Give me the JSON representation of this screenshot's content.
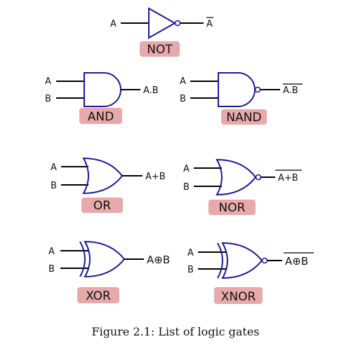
{
  "gates": {
    "not": {
      "name": "NOT",
      "input": "A",
      "output": "A"
    },
    "and": {
      "name": "AND",
      "inputs": [
        "A",
        "B"
      ],
      "output": "A.B"
    },
    "nand": {
      "name": "NAND",
      "inputs": [
        "A",
        "B"
      ],
      "output": "A.B"
    },
    "or": {
      "name": "OR",
      "inputs": [
        "A",
        "B"
      ],
      "output": "A+B"
    },
    "nor": {
      "name": "NOR",
      "inputs": [
        "A",
        "B"
      ],
      "output": "A+B"
    },
    "xor": {
      "name": "XOR",
      "inputs": [
        "A",
        "B"
      ],
      "output": "A⊕B"
    },
    "xnor": {
      "name": "XNOR",
      "inputs": [
        "A",
        "B"
      ],
      "output": "A⊕B"
    }
  },
  "caption": "Figure 2.1: List of logic gates",
  "colors": {
    "gate_stroke": "#1a1a9e",
    "tag_background": "#e8a9ab"
  }
}
